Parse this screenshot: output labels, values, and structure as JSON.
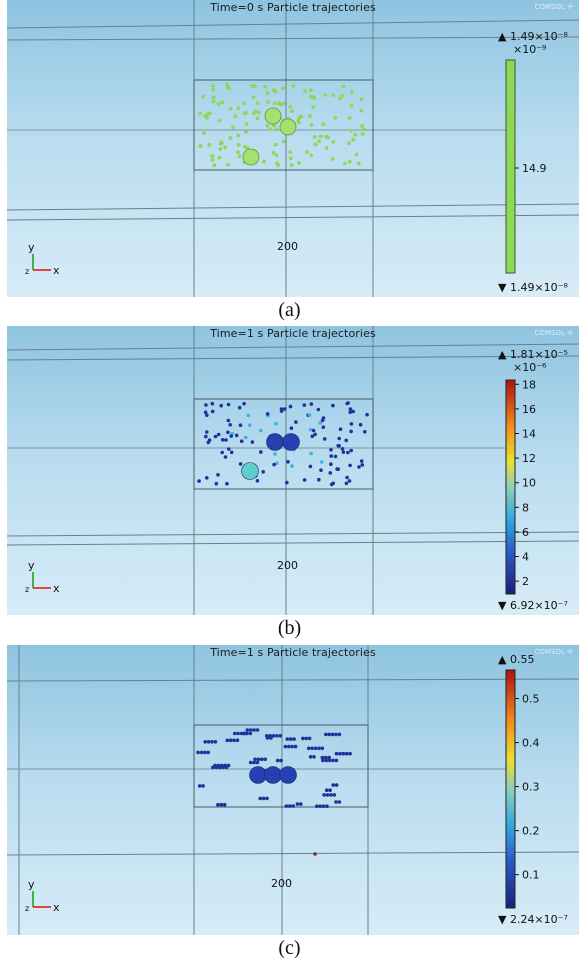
{
  "panels": [
    {
      "title": "Time=0 s  Particle trajectories",
      "caption": "(a)",
      "axis_center_label": "200",
      "axis_y": "y",
      "axis_x": "x",
      "axis_z": "z",
      "max_label": "▲ 1.49×10⁻⁸",
      "exponent_label": "×10⁻⁹",
      "min_label": "▼ 1.49×10⁻⁸",
      "colorbar_ticks": [
        "14.9"
      ],
      "colorbar_type": "uniform-green",
      "particle_color": "#8ed858",
      "large_particles": 3
    },
    {
      "title": "Time=1 s  Particle trajectories",
      "caption": "(b)",
      "axis_center_label": "200",
      "axis_y": "y",
      "axis_x": "x",
      "axis_z": "z",
      "max_label": "▲ 1.81×10⁻⁵",
      "exponent_label": "×10⁻⁶",
      "min_label": "▼ 6.92×10⁻⁷",
      "colorbar_ticks": [
        "18",
        "16",
        "14",
        "12",
        "10",
        "8",
        "6",
        "4",
        "2"
      ],
      "colorbar_type": "rainbow",
      "particle_color": "#22309a",
      "large_particles": 3
    },
    {
      "title": "Time=1 s  Particle trajectories",
      "caption": "(c)",
      "axis_center_label": "200",
      "axis_y": "y",
      "axis_x": "x",
      "axis_z": "z",
      "max_label": "▲ 0.55",
      "exponent_label": "",
      "min_label": "▼ 2.24×10⁻⁷",
      "colorbar_ticks": [
        "0.5",
        "0.4",
        "0.3",
        "0.2",
        "0.1"
      ],
      "colorbar_type": "rainbow",
      "particle_color": "#22309a",
      "large_particles": 3
    }
  ],
  "colors": {
    "background_top": "#8ec4e0",
    "background_bottom": "#d7ecf7",
    "box_line": "#5a6b78",
    "axis_x": "#e01010",
    "axis_y": "#10a010"
  }
}
